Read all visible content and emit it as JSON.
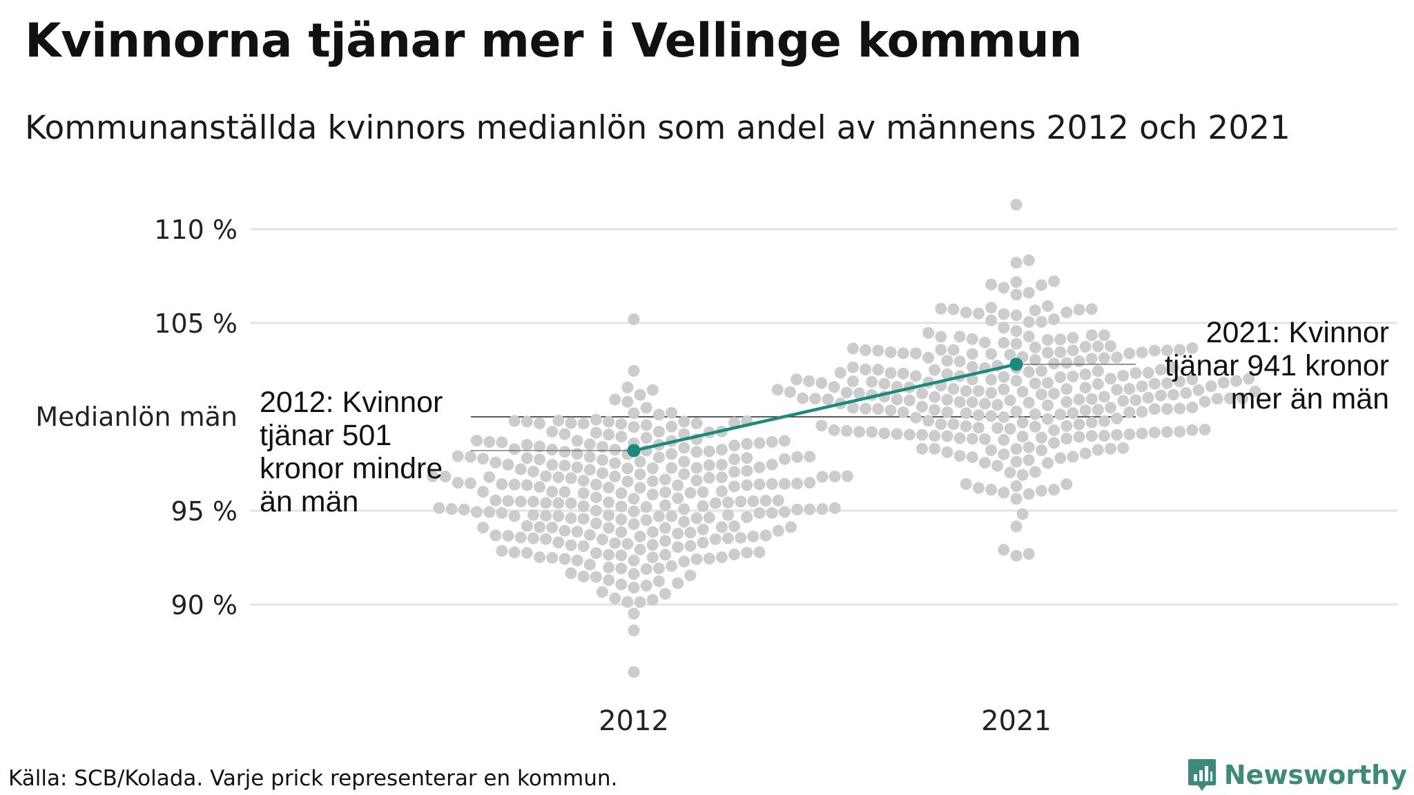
{
  "title": "Kvinnorna tjänar mer i Vellinge kommun",
  "subtitle": "Kommunanställda kvinnors medianlön som andel av männens 2012 och 2021",
  "source": "Källa: SCB/Kolada. Varje prick representerar en kommun.",
  "brand": "Newsworthy",
  "colors": {
    "dots": "#cccccc",
    "highlight": "#1a8a7c",
    "grid": "#e3e3e6",
    "reference_line": "#222222",
    "brand": "#3d8a7a"
  },
  "chart_data": {
    "type": "scatter",
    "categories": [
      "2012",
      "2021"
    ],
    "ylim": [
      86,
      112
    ],
    "y_ticks": [
      {
        "value": 90,
        "label": "90 %"
      },
      {
        "value": 95,
        "label": "95 %"
      },
      {
        "value": 105,
        "label": "105 %"
      },
      {
        "value": 110,
        "label": "110 %"
      }
    ],
    "reference": {
      "value": 100,
      "label": "Medianlön män"
    },
    "highlight": {
      "values": [
        98.2,
        102.8
      ],
      "annotations": [
        {
          "category": "2012",
          "lines": [
            "2012: Kvinnor",
            "tjänar 501",
            "kronor mindre",
            "än män"
          ]
        },
        {
          "category": "2021",
          "lines": [
            "2021: Kvinnor",
            "tjänar 941 kronor",
            "mer än män"
          ]
        }
      ]
    },
    "distribution": {
      "note": "Beeswarm of municipalities (approx. 290 per year)",
      "count_per_year": 290,
      "2012": {
        "min": 86.4,
        "max": 105.2,
        "median": 95.7
      },
      "2021": {
        "min": 92.6,
        "max": 111.3,
        "median": 101.4
      }
    },
    "grid": true
  }
}
